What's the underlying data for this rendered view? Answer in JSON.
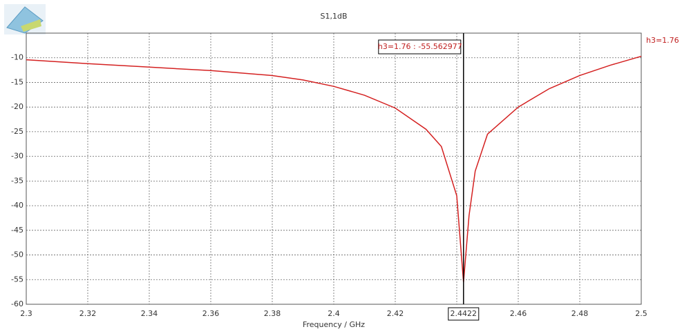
{
  "chart_data": {
    "type": "line",
    "title": "S1,1dB",
    "x_label": "Frequency / GHz",
    "x": [
      2.3,
      2.32,
      2.34,
      2.36,
      2.38,
      2.39,
      2.4,
      2.41,
      2.42,
      2.43,
      2.435,
      2.44,
      2.4422,
      2.444,
      2.446,
      2.45,
      2.46,
      2.47,
      2.48,
      2.49,
      2.5
    ],
    "series": [
      {
        "color": "#d42020",
        "values": [
          -10.4,
          -11.2,
          -11.9,
          -12.6,
          -13.6,
          -14.5,
          -15.8,
          -17.6,
          -20.2,
          -24.5,
          -28,
          -38,
          -55.562977,
          -42,
          -33,
          -25.5,
          -20,
          -16.3,
          -13.6,
          -11.5,
          -9.7
        ]
      }
    ],
    "xlim": [
      2.3,
      2.5
    ],
    "xticks": [
      2.3,
      2.32,
      2.34,
      2.36,
      2.38,
      2.4,
      2.42,
      2.44,
      2.46,
      2.48,
      2.5
    ],
    "ylim": [
      -60,
      -5
    ],
    "yticks": [
      -60,
      -55,
      -50,
      -45,
      -40,
      -35,
      -30,
      -25,
      -20,
      -15,
      -10
    ],
    "grid": true,
    "marker": {
      "x": 2.4422,
      "annotation": "h3=1.76 : -55.562977",
      "name": "h3=1.76"
    }
  }
}
